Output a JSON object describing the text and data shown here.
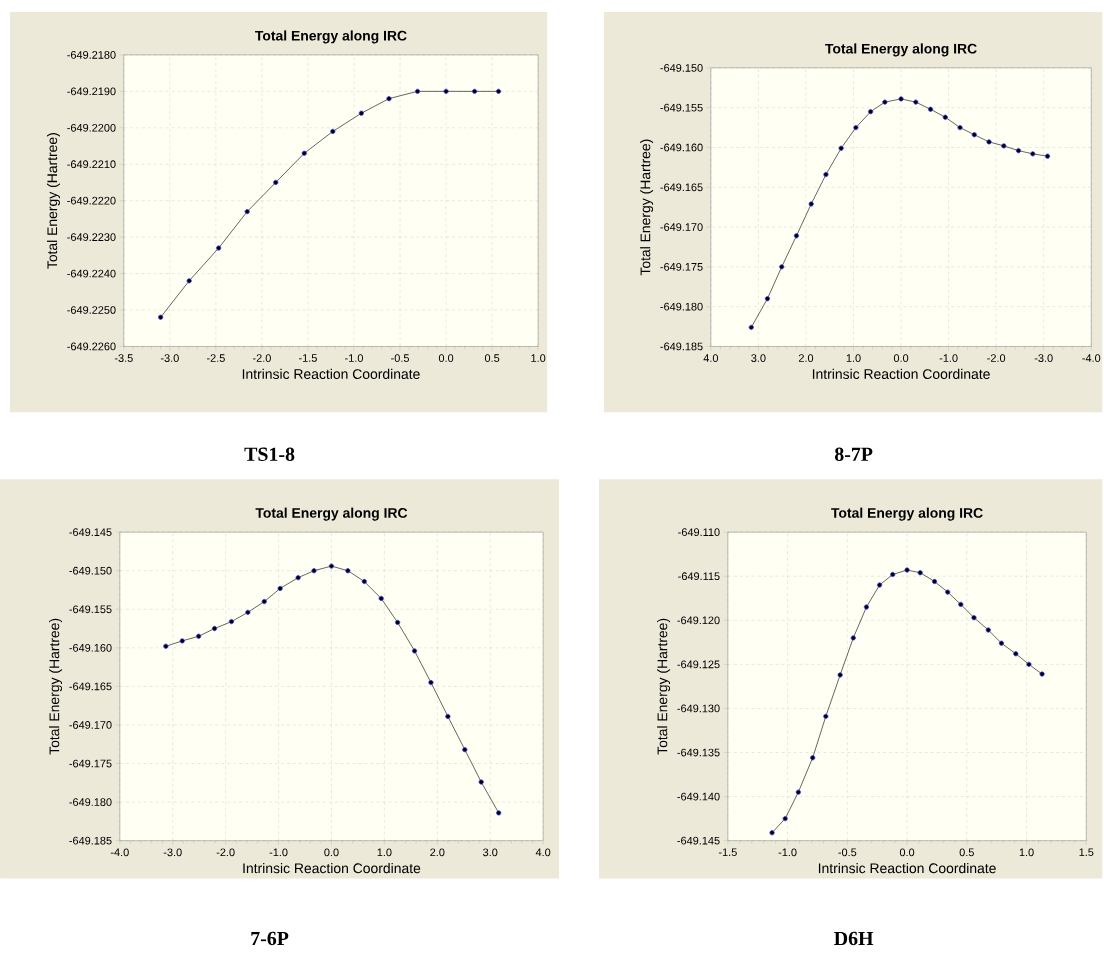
{
  "chart_data": [
    {
      "type": "line",
      "title": "Total Energy along IRC",
      "xlabel": "Intrinsic Reaction Coordinate",
      "ylabel": "Total Energy (Hartree)",
      "annotations": [
        "TS1-8"
      ],
      "grid": true,
      "marker": "circle",
      "line_style": "solid",
      "xlim": [
        -3.5,
        1.0
      ],
      "ylim": [
        -649.226,
        -649.218
      ],
      "xticks": [
        {
          "value": -3.5,
          "label": "-3.5"
        },
        {
          "value": -3.0,
          "label": "-3.0"
        },
        {
          "value": -2.5,
          "label": "-2.5"
        },
        {
          "value": -2.0,
          "label": "-2.0"
        },
        {
          "value": -1.5,
          "label": "-1.5"
        },
        {
          "value": -1.0,
          "label": "-1.0"
        },
        {
          "value": -0.5,
          "label": "-0.5"
        },
        {
          "value": 0.0,
          "label": "0.0"
        },
        {
          "value": 0.5,
          "label": "0.5"
        },
        {
          "value": 1.0,
          "label": "1.0"
        }
      ],
      "yticks": [
        {
          "value": -649.226,
          "label": "-649.2260"
        },
        {
          "value": -649.225,
          "label": "-649.2250"
        },
        {
          "value": -649.224,
          "label": "-649.2240"
        },
        {
          "value": -649.223,
          "label": "-649.2230"
        },
        {
          "value": -649.222,
          "label": "-649.2220"
        },
        {
          "value": -649.221,
          "label": "-649.2210"
        },
        {
          "value": -649.22,
          "label": "-649.2200"
        },
        {
          "value": -649.219,
          "label": "-649.2190"
        },
        {
          "value": -649.218,
          "label": "-649.2180"
        }
      ],
      "x": [
        -3.1,
        -2.79,
        -2.47,
        -2.16,
        -1.85,
        -1.54,
        -1.23,
        -0.92,
        -0.62,
        -0.31,
        0.0,
        0.31,
        0.57
      ],
      "series": [
        {
          "color": "#3c3cff",
          "values": [
            -649.2252,
            -649.2242,
            -649.2233,
            -649.2223,
            -649.2215,
            -649.2207,
            -649.2201,
            -649.2196,
            -649.2192,
            -649.219,
            -649.219,
            -649.219,
            -649.219
          ]
        }
      ]
    },
    {
      "type": "line",
      "title": "Total Energy along IRC",
      "xlabel": "Intrinsic Reaction Coordinate",
      "ylabel": "Total Energy (Hartree)",
      "annotations": [
        "8-7P"
      ],
      "grid": true,
      "marker": "circle",
      "line_style": "solid",
      "xlim": [
        4.0,
        -4.0
      ],
      "ylim": [
        -649.185,
        -649.15
      ],
      "xticks": [
        {
          "value": 4.0,
          "label": "4.0"
        },
        {
          "value": 3.0,
          "label": "3.0"
        },
        {
          "value": 2.0,
          "label": "2.0"
        },
        {
          "value": 1.0,
          "label": "1.0"
        },
        {
          "value": 0.0,
          "label": "0.0"
        },
        {
          "value": -1.0,
          "label": "-1.0"
        },
        {
          "value": -2.0,
          "label": "-2.0"
        },
        {
          "value": -3.0,
          "label": "-3.0"
        },
        {
          "value": -4.0,
          "label": "-4.0"
        }
      ],
      "yticks": [
        {
          "value": -649.185,
          "label": "-649.185"
        },
        {
          "value": -649.18,
          "label": "-649.180"
        },
        {
          "value": -649.175,
          "label": "-649.175"
        },
        {
          "value": -649.17,
          "label": "-649.170"
        },
        {
          "value": -649.165,
          "label": "-649.165"
        },
        {
          "value": -649.16,
          "label": "-649.160"
        },
        {
          "value": -649.155,
          "label": "-649.155"
        },
        {
          "value": -649.15,
          "label": "-649.150"
        }
      ],
      "x": [
        3.15,
        2.81,
        2.51,
        2.2,
        1.89,
        1.58,
        1.26,
        0.95,
        0.64,
        0.34,
        0.0,
        -0.31,
        -0.62,
        -0.93,
        -1.24,
        -1.54,
        -1.85,
        -2.16,
        -2.47,
        -2.77,
        -3.08
      ],
      "series": [
        {
          "color": "#3c3cff",
          "values": [
            -649.1826,
            -649.179,
            -649.175,
            -649.1711,
            -649.1671,
            -649.1634,
            -649.1601,
            -649.1575,
            -649.1555,
            -649.1543,
            -649.1539,
            -649.1543,
            -649.1552,
            -649.1562,
            -649.1575,
            -649.1584,
            -649.1593,
            -649.1598,
            -649.1604,
            -649.1608,
            -649.1611
          ]
        }
      ]
    },
    {
      "type": "line",
      "title": "Total Energy along IRC",
      "xlabel": "Intrinsic Reaction Coordinate",
      "ylabel": "Total Energy (Hartree)",
      "annotations": [
        "7-6P"
      ],
      "grid": true,
      "marker": "circle",
      "line_style": "solid",
      "xlim": [
        -4.0,
        4.0
      ],
      "ylim": [
        -649.185,
        -649.145
      ],
      "xticks": [
        {
          "value": -4.0,
          "label": "-4.0"
        },
        {
          "value": -3.0,
          "label": "-3.0"
        },
        {
          "value": -2.0,
          "label": "-2.0"
        },
        {
          "value": -1.0,
          "label": "-1.0"
        },
        {
          "value": 0.0,
          "label": "0.0"
        },
        {
          "value": 1.0,
          "label": "1.0"
        },
        {
          "value": 2.0,
          "label": "2.0"
        },
        {
          "value": 3.0,
          "label": "3.0"
        },
        {
          "value": 4.0,
          "label": "4.0"
        }
      ],
      "yticks": [
        {
          "value": -649.185,
          "label": "-649.185"
        },
        {
          "value": -649.18,
          "label": "-649.180"
        },
        {
          "value": -649.175,
          "label": "-649.175"
        },
        {
          "value": -649.17,
          "label": "-649.170"
        },
        {
          "value": -649.165,
          "label": "-649.165"
        },
        {
          "value": -649.16,
          "label": "-649.160"
        },
        {
          "value": -649.155,
          "label": "-649.155"
        },
        {
          "value": -649.15,
          "label": "-649.150"
        },
        {
          "value": -649.145,
          "label": "-649.145"
        }
      ],
      "x": [
        -3.13,
        -2.82,
        -2.51,
        -2.21,
        -1.89,
        -1.58,
        -1.27,
        -0.97,
        -0.63,
        -0.33,
        0.0,
        0.31,
        0.62,
        0.94,
        1.25,
        1.57,
        1.88,
        2.2,
        2.52,
        2.83,
        3.16
      ],
      "series": [
        {
          "color": "#3c3cff",
          "values": [
            -649.1598,
            -649.1591,
            -649.1585,
            -649.1575,
            -649.1566,
            -649.1554,
            -649.154,
            -649.1523,
            -649.1509,
            -649.15,
            -649.1494,
            -649.15,
            -649.1514,
            -649.1536,
            -649.1567,
            -649.1604,
            -649.1645,
            -649.1689,
            -649.1732,
            -649.1774,
            -649.1814
          ]
        }
      ]
    },
    {
      "type": "line",
      "title": "Total Energy along IRC",
      "xlabel": "Intrinsic Reaction Coordinate",
      "ylabel": "Total Energy (Hartree)",
      "annotations": [
        "D6H"
      ],
      "grid": true,
      "marker": "circle",
      "line_style": "solid",
      "xlim": [
        -1.5,
        1.5
      ],
      "ylim": [
        -649.145,
        -649.11
      ],
      "xticks": [
        {
          "value": -1.5,
          "label": "-1.5"
        },
        {
          "value": -1.0,
          "label": "-1.0"
        },
        {
          "value": -0.5,
          "label": "-0.5"
        },
        {
          "value": 0.0,
          "label": "0.0"
        },
        {
          "value": 0.5,
          "label": "0.5"
        },
        {
          "value": 1.0,
          "label": "1.0"
        },
        {
          "value": 1.5,
          "label": "1.5"
        }
      ],
      "yticks": [
        {
          "value": -649.145,
          "label": "-649.145"
        },
        {
          "value": -649.14,
          "label": "-649.140"
        },
        {
          "value": -649.135,
          "label": "-649.135"
        },
        {
          "value": -649.13,
          "label": "-649.130"
        },
        {
          "value": -649.125,
          "label": "-649.125"
        },
        {
          "value": -649.12,
          "label": "-649.120"
        },
        {
          "value": -649.115,
          "label": "-649.115"
        },
        {
          "value": -649.11,
          "label": "-649.110"
        }
      ],
      "x": [
        -1.13,
        -1.02,
        -0.91,
        -0.79,
        -0.68,
        -0.56,
        -0.45,
        -0.34,
        -0.23,
        -0.12,
        0.0,
        0.11,
        0.23,
        0.34,
        0.45,
        0.56,
        0.68,
        0.79,
        0.91,
        1.02,
        1.13
      ],
      "series": [
        {
          "color": "#3c3cff",
          "values": [
            -649.1441,
            -649.1425,
            -649.1395,
            -649.1356,
            -649.1309,
            -649.1262,
            -649.122,
            -649.1185,
            -649.116,
            -649.1148,
            -649.1143,
            -649.1146,
            -649.1156,
            -649.1168,
            -649.1182,
            -649.1197,
            -649.1211,
            -649.1226,
            -649.1238,
            -649.125,
            -649.1261
          ]
        }
      ]
    }
  ]
}
